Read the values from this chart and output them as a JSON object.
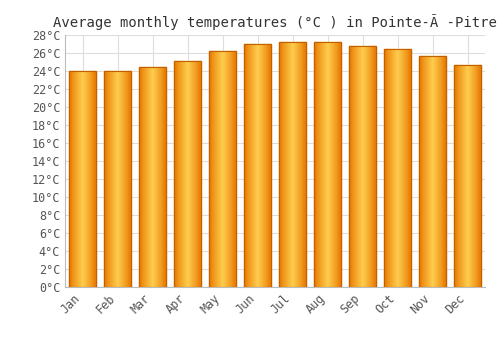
{
  "title": "Average monthly temperatures (°C ) in Pointe-Ã -Pitre",
  "months": [
    "Jan",
    "Feb",
    "Mar",
    "Apr",
    "May",
    "Jun",
    "Jul",
    "Aug",
    "Sep",
    "Oct",
    "Nov",
    "Dec"
  ],
  "temperatures": [
    24.0,
    24.0,
    24.5,
    25.1,
    26.2,
    27.0,
    27.2,
    27.2,
    26.8,
    26.5,
    25.7,
    24.7
  ],
  "bar_color_center": "#FFD050",
  "bar_color_edge": "#E87800",
  "ylim": [
    0,
    28
  ],
  "ytick_step": 2,
  "background_color": "#ffffff",
  "plot_bg_color": "#ffffff",
  "grid_color": "#dddddd",
  "title_fontsize": 10,
  "tick_fontsize": 8.5,
  "font_family": "monospace"
}
